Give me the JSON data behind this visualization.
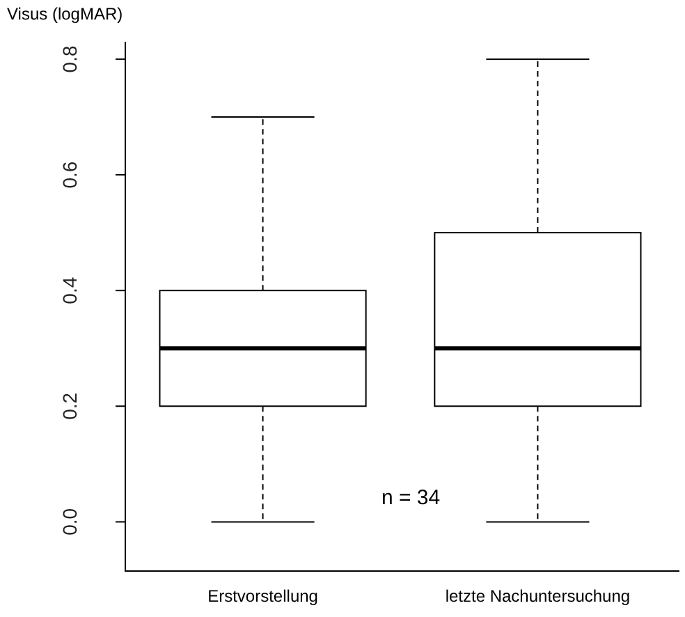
{
  "chart_data": {
    "type": "box",
    "ylabel": "Visus (logMAR)",
    "categories": [
      "Erstvorstellung",
      "letzte Nachuntersuchung"
    ],
    "boxes": [
      {
        "low": 0,
        "q1": 0.2,
        "median": 0.3,
        "q3": 0.4,
        "high": 0.7
      },
      {
        "low": 0,
        "q1": 0.2,
        "median": 0.3,
        "q3": 0.5,
        "high": 0.8
      }
    ],
    "ylim": [
      -0.085,
      0.83
    ],
    "yticks": [
      {
        "value": 0,
        "label": "0.0"
      },
      {
        "value": 0.2,
        "label": "0.2"
      },
      {
        "value": 0.4,
        "label": "0.4"
      },
      {
        "value": 0.6,
        "label": "0.6"
      },
      {
        "value": 0.8,
        "label": "0.8"
      }
    ],
    "annotations": [
      "n = 34"
    ],
    "grid": false
  }
}
